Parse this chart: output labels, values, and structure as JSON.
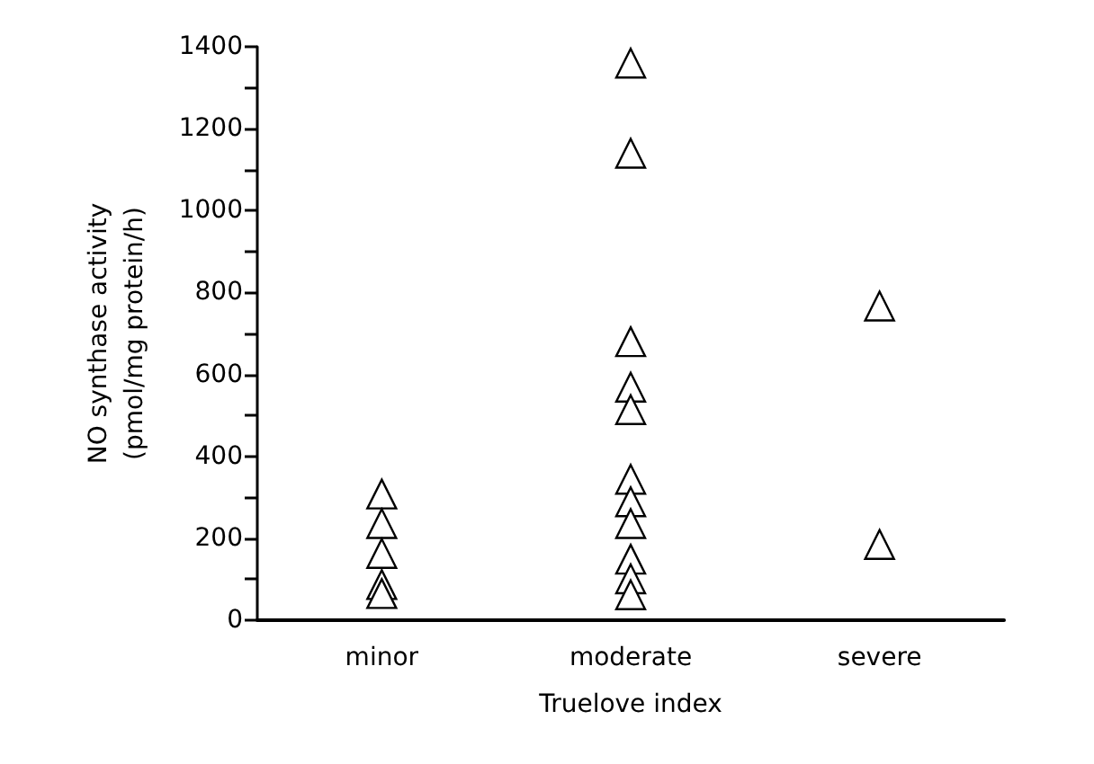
{
  "chart_data": {
    "type": "scatter",
    "xlabel": "Truelove index",
    "ylabel": "NO synthase activity\n(pmol/mg protein/h)",
    "categories": [
      "minor",
      "moderate",
      "severe"
    ],
    "series": [
      {
        "color": "#000000",
        "x": [
          "minor",
          "minor",
          "minor",
          "minor",
          "minor",
          "moderate",
          "moderate",
          "moderate",
          "moderate",
          "moderate",
          "moderate",
          "moderate",
          "moderate",
          "moderate",
          "moderate",
          "moderate",
          "severe",
          "severe"
        ],
        "values": [
          308,
          236,
          163,
          87,
          65,
          1360,
          1140,
          680,
          569,
          514,
          344,
          289,
          236,
          149,
          101,
          62,
          767,
          185
        ]
      }
    ],
    "ylim": [
      0,
      1400
    ],
    "yticks": [
      0,
      {
        "value": 100,
        "label": null
      },
      200,
      {
        "value": 300,
        "label": null
      },
      400,
      {
        "value": 500,
        "label": null
      },
      600,
      {
        "value": 700,
        "label": null
      },
      800,
      {
        "value": 900,
        "label": null
      },
      1000,
      {
        "value": 1100,
        "label": null
      },
      1200,
      {
        "value": 1300,
        "label": null
      },
      1400
    ],
    "marker": "triangle",
    "grid": false
  }
}
